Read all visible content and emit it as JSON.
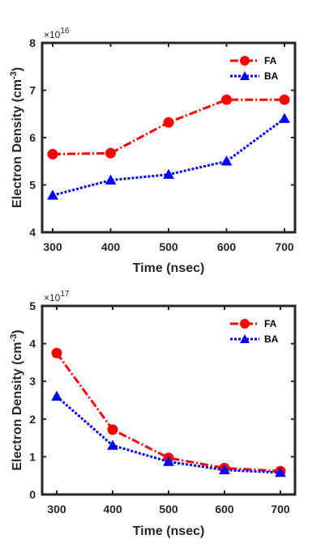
{
  "chart_data": [
    {
      "type": "line",
      "x": [
        300,
        400,
        500,
        600,
        700
      ],
      "xlabel": "Time (nsec)",
      "ylabel_main": "Electron Density (cm",
      "ylabel_sup": "-3",
      "ylabel_close": ")",
      "ylim": [
        4,
        8
      ],
      "yticks": [
        "4",
        "5",
        "6",
        "7",
        "8"
      ],
      "xticks": [
        "300",
        "400",
        "500",
        "600",
        "700"
      ],
      "exponent_base": "×10",
      "exponent_power": "16",
      "grid": false,
      "legend_position": "top-right",
      "series": [
        {
          "name": "FA",
          "values": [
            5.65,
            5.67,
            6.32,
            6.8,
            6.8
          ],
          "color": "#ff0000",
          "marker": "circle",
          "line": "dash-dot"
        },
        {
          "name": "BA",
          "values": [
            4.78,
            5.1,
            5.22,
            5.5,
            6.4
          ],
          "color": "#0000ff",
          "marker": "triangle",
          "line": "dotted"
        }
      ]
    },
    {
      "type": "line",
      "x": [
        300,
        400,
        500,
        600,
        700
      ],
      "xlabel": "Time (nsec)",
      "ylabel_main": "Electron Density (cm",
      "ylabel_sup": "-3",
      "ylabel_close": ")",
      "ylim": [
        0,
        5
      ],
      "yticks": [
        "0",
        "1",
        "2",
        "3",
        "4",
        "5"
      ],
      "xticks": [
        "300",
        "400",
        "500",
        "600",
        "700"
      ],
      "exponent_base": "×10",
      "exponent_power": "17",
      "grid": false,
      "legend_position": "top-right",
      "series": [
        {
          "name": "FA",
          "values": [
            3.75,
            1.72,
            0.97,
            0.7,
            0.62
          ],
          "color": "#ff0000",
          "marker": "circle",
          "line": "dash-dot"
        },
        {
          "name": "BA",
          "values": [
            2.6,
            1.3,
            0.87,
            0.65,
            0.58
          ],
          "color": "#0000ff",
          "marker": "triangle",
          "line": "dotted"
        }
      ]
    }
  ]
}
